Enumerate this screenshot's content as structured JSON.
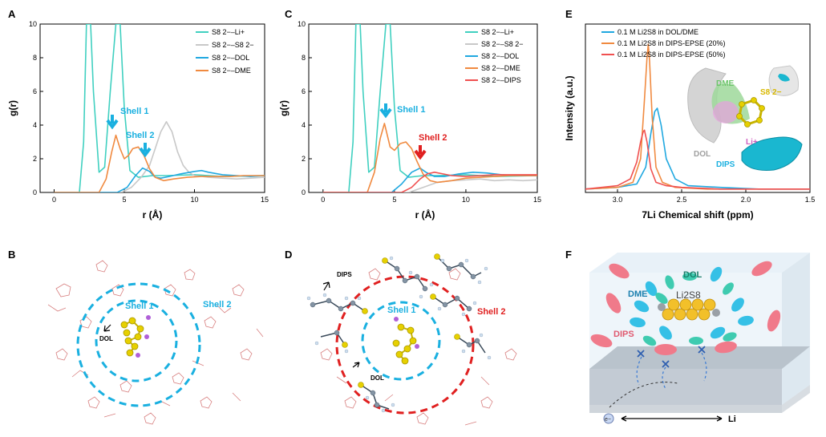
{
  "panels": {
    "A": "A",
    "B": "B",
    "C": "C",
    "D": "D",
    "E": "E",
    "F": "F"
  },
  "colors": {
    "li": "#40d0c0",
    "s8": "#c8c8c8",
    "dol": "#20a8e0",
    "dme": "#f08a40",
    "dips": "#f05050",
    "cyan_text": "#1ab0e0",
    "red_text": "#e02020"
  },
  "chart_data": [
    {
      "id": "A",
      "type": "line",
      "xlabel": "r (Å)",
      "ylabel": "g(r)",
      "xlim": [
        -1,
        15
      ],
      "ylim": [
        0,
        10
      ],
      "xticks": [
        "0",
        "5",
        "10",
        "15"
      ],
      "yticks": [
        "0",
        "2",
        "4",
        "6",
        "8",
        "10"
      ],
      "legend": [
        "S8 2−–Li+",
        "S8 2−–S8 2−",
        "S8 2−–DOL",
        "S8 2−–DME"
      ],
      "annotations": [
        "Shell 1",
        "Shell 2"
      ],
      "series": [
        {
          "name": "S8 2−–Li+",
          "color": "li",
          "x": [
            0,
            1.8,
            2.1,
            2.3,
            2.6,
            2.8,
            3.2,
            3.6,
            4.0,
            4.4,
            4.7,
            5.0,
            5.4,
            6,
            7,
            8,
            10,
            12,
            15
          ],
          "y": [
            0,
            0,
            3,
            10,
            10,
            6,
            1.2,
            1.5,
            6,
            10,
            10,
            5,
            1.3,
            0.9,
            1,
            1,
            1.05,
            0.95,
            1
          ]
        },
        {
          "name": "S8 2−–S8 2−",
          "color": "s8",
          "x": [
            0,
            4.8,
            5.5,
            6.2,
            6.8,
            7.2,
            7.6,
            8,
            8.4,
            8.8,
            9.2,
            9.6,
            10,
            11,
            12,
            13,
            14,
            15
          ],
          "y": [
            0,
            0,
            0.3,
            0.9,
            1.6,
            2.6,
            3.6,
            4.2,
            3.6,
            2.4,
            1.6,
            1.2,
            1.0,
            0.9,
            0.85,
            0.8,
            0.85,
            0.9
          ]
        },
        {
          "name": "S8 2−–DOL",
          "color": "dol",
          "x": [
            0,
            4.5,
            5.2,
            5.8,
            6.3,
            6.8,
            7.2,
            7.6,
            8.2,
            9,
            10,
            10.5,
            11,
            12,
            13,
            14,
            15
          ],
          "y": [
            0,
            0,
            0.3,
            1,
            1.45,
            1.25,
            0.9,
            0.85,
            0.95,
            1.1,
            1.25,
            1.3,
            1.2,
            1.05,
            1.0,
            0.95,
            1.0
          ]
        },
        {
          "name": "S8 2−–DME",
          "color": "dme",
          "x": [
            0,
            3.2,
            3.7,
            4.1,
            4.4,
            4.7,
            5.0,
            5.3,
            5.6,
            6.0,
            6.4,
            6.8,
            7.2,
            7.8,
            8.5,
            9.5,
            10.5,
            11.5,
            12.5,
            13.5,
            15
          ],
          "y": [
            0,
            0,
            0.8,
            2.4,
            3.4,
            2.6,
            2.0,
            2.2,
            2.6,
            2.7,
            2.2,
            1.4,
            0.9,
            0.7,
            0.8,
            0.9,
            0.95,
            0.95,
            0.95,
            1.0,
            1.0
          ]
        }
      ]
    },
    {
      "id": "C",
      "type": "line",
      "xlabel": "r (Å)",
      "ylabel": "g(r)",
      "xlim": [
        -1,
        15
      ],
      "ylim": [
        0,
        10
      ],
      "xticks": [
        "0",
        "5",
        "10",
        "15"
      ],
      "yticks": [
        "0",
        "2",
        "4",
        "6",
        "8",
        "10"
      ],
      "legend": [
        "S8 2−–Li+",
        "S8 2−–S8 2−",
        "S8 2−–DOL",
        "S8 2−–DME",
        "S8 2−–DIPS"
      ],
      "annotations": [
        "Shell 1",
        "Shell 2"
      ],
      "series": [
        {
          "name": "S8 2−–Li+",
          "color": "li",
          "x": [
            0,
            1.8,
            2.1,
            2.3,
            2.6,
            2.8,
            3.2,
            3.6,
            4.0,
            4.4,
            4.7,
            5.0,
            5.4,
            6,
            7,
            8,
            10,
            12,
            15
          ],
          "y": [
            0,
            0,
            3,
            10,
            10,
            6,
            1.2,
            1.5,
            6,
            10,
            10,
            5,
            1.3,
            0.9,
            1,
            1,
            1.05,
            0.95,
            1
          ]
        },
        {
          "name": "S8 2−–S8 2−",
          "color": "s8",
          "x": [
            0,
            6,
            7,
            8,
            9,
            10,
            11,
            12,
            13,
            14,
            15
          ],
          "y": [
            0,
            0,
            0.3,
            0.6,
            0.7,
            0.75,
            0.8,
            0.7,
            0.75,
            0.7,
            0.75
          ]
        },
        {
          "name": "S8 2−–DOL",
          "color": "dol",
          "x": [
            0,
            4.8,
            5.5,
            6.2,
            6.8,
            7.2,
            7.8,
            8.5,
            9.5,
            10.5,
            11.5,
            12.5,
            13.5,
            15
          ],
          "y": [
            0,
            0,
            0.5,
            1.2,
            1.45,
            1.2,
            0.95,
            0.95,
            1.1,
            1.2,
            1.15,
            1.05,
            1.0,
            1.0
          ]
        },
        {
          "name": "S8 2−–DME",
          "color": "dme",
          "x": [
            0,
            3.1,
            3.6,
            4.0,
            4.3,
            4.7,
            5.0,
            5.4,
            5.8,
            6.2,
            6.6,
            7.0,
            7.5,
            8,
            9,
            10,
            11,
            12,
            13,
            15
          ],
          "y": [
            0,
            0,
            1.2,
            3.2,
            4.1,
            2.7,
            2.5,
            2.9,
            3.0,
            2.6,
            1.8,
            1.1,
            0.7,
            0.6,
            0.7,
            0.85,
            0.9,
            0.95,
            1.0,
            1.0
          ]
        },
        {
          "name": "S8 2−–DIPS",
          "color": "dips",
          "x": [
            0,
            5.5,
            6.2,
            6.8,
            7.3,
            7.8,
            8.4,
            9,
            10,
            11,
            12,
            13,
            14,
            15
          ],
          "y": [
            0,
            0,
            0.3,
            0.8,
            1.1,
            1.2,
            1.1,
            1.0,
            0.95,
            1.0,
            1.05,
            1.05,
            1.05,
            1.05
          ]
        }
      ]
    },
    {
      "id": "E",
      "type": "line",
      "xlabel": "7Li Chemical shift (ppm)",
      "ylabel": "Intensity (a.u.)",
      "xlim": [
        3.25,
        1.5
      ],
      "ylim": [
        0,
        1
      ],
      "xticks": [
        "3.0",
        "2.5",
        "2.0",
        "1.5"
      ],
      "legend": [
        "0.1 M Li2S8 in DOL/DME",
        "0.1 M Li2S8 in DIPS-EPSE (20%)",
        "0.1 M Li2S8 in DIPS-EPSE (50%)"
      ],
      "insert_labels": [
        "DME",
        "S8 2−",
        "Li+",
        "DOL",
        "DIPS"
      ],
      "series": [
        {
          "name": "DOL/DME",
          "color": "dol",
          "x": [
            3.25,
            3.0,
            2.85,
            2.78,
            2.74,
            2.71,
            2.69,
            2.66,
            2.62,
            2.55,
            2.45,
            2.2,
            1.9,
            1.5
          ],
          "y": [
            0.02,
            0.03,
            0.05,
            0.15,
            0.35,
            0.48,
            0.5,
            0.4,
            0.2,
            0.08,
            0.04,
            0.03,
            0.02,
            0.02
          ]
        },
        {
          "name": "DIPS-EPSE (20%)",
          "color": "dme",
          "x": [
            3.25,
            3.0,
            2.88,
            2.82,
            2.79,
            2.77,
            2.76,
            2.75,
            2.73,
            2.7,
            2.65,
            2.55,
            2.3,
            1.9,
            1.5
          ],
          "y": [
            0.02,
            0.03,
            0.06,
            0.2,
            0.55,
            0.8,
            0.88,
            0.78,
            0.45,
            0.15,
            0.06,
            0.03,
            0.02,
            0.02,
            0.02
          ]
        },
        {
          "name": "DIPS-EPSE (50%)",
          "color": "dips",
          "x": [
            3.25,
            3.0,
            2.9,
            2.85,
            2.82,
            2.8,
            2.79,
            2.77,
            2.74,
            2.7,
            2.62,
            2.5,
            2.2,
            1.9,
            1.5
          ],
          "y": [
            0.02,
            0.04,
            0.08,
            0.18,
            0.3,
            0.36,
            0.37,
            0.3,
            0.14,
            0.06,
            0.04,
            0.03,
            0.02,
            0.02,
            0.02
          ]
        }
      ]
    }
  ],
  "diagramB": {
    "shell1": "Shell 1",
    "shell2": "Shell 2",
    "dol": "DOL"
  },
  "diagramD": {
    "shell1": "Shell 1",
    "shell2": "Shell 2",
    "dol": "DOL",
    "dips": "DIPS"
  },
  "diagramF": {
    "dol": "DOL",
    "dme": "DME",
    "dips": "DIPS",
    "compound": "Li2S8",
    "li": "Li",
    "e": "e−"
  }
}
